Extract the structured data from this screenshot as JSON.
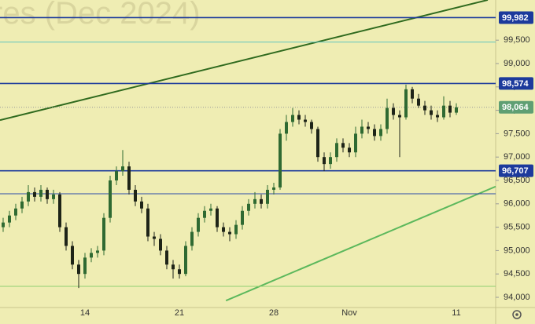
{
  "chart_data": {
    "type": "candlestick",
    "watermark": "res (Dec 2024)",
    "categories": [
      null,
      null,
      null,
      null,
      null,
      null,
      null,
      null,
      null,
      null,
      null,
      null,
      null,
      "14",
      null,
      null,
      null,
      null,
      null,
      null,
      null,
      null,
      null,
      null,
      null,
      null,
      null,
      null,
      "21",
      null,
      null,
      null,
      null,
      null,
      null,
      null,
      null,
      null,
      null,
      null,
      null,
      null,
      null,
      "28",
      null,
      null,
      null,
      null,
      null,
      null,
      null,
      null,
      null,
      null,
      null,
      "Nov",
      null,
      null,
      null,
      null,
      null,
      null,
      null,
      null,
      null,
      null,
      null,
      null,
      null,
      null,
      null,
      null,
      "11"
    ],
    "open": [
      95500,
      95600,
      95750,
      95900,
      96050,
      96250,
      96150,
      96300,
      96100,
      96200,
      95500,
      95100,
      94700,
      94500,
      94850,
      94950,
      95000,
      95700,
      96500,
      96700,
      96800,
      96300,
      96050,
      95900,
      95300,
      95250,
      95000,
      94700,
      94600,
      94500,
      95100,
      95400,
      95700,
      95850,
      95900,
      95500,
      95400,
      95350,
      95550,
      95850,
      96000,
      96100,
      96000,
      96300,
      96350,
      97500,
      97750,
      97900,
      97800,
      97750,
      97600,
      97000,
      96850,
      97000,
      97300,
      97200,
      97100,
      97500,
      97650,
      97600,
      97450,
      97600,
      98050,
      97900,
      97850,
      98450,
      98250,
      98100,
      98000,
      97900,
      97850,
      98100,
      97950
    ],
    "high": [
      95700,
      95850,
      96000,
      96150,
      96400,
      96350,
      96400,
      96350,
      96300,
      96250,
      95600,
      95200,
      94800,
      94950,
      95050,
      95100,
      95800,
      96600,
      96800,
      97150,
      96900,
      96400,
      96150,
      96000,
      95400,
      95350,
      95100,
      94800,
      94700,
      95200,
      95500,
      95800,
      95950,
      96000,
      95950,
      95600,
      95500,
      95650,
      95950,
      96100,
      96250,
      96200,
      96400,
      96450,
      97600,
      97900,
      98050,
      98000,
      97900,
      97800,
      97650,
      97100,
      97100,
      97400,
      97400,
      97300,
      97650,
      97800,
      97750,
      97700,
      97700,
      98250,
      98150,
      98000,
      98550,
      98500,
      98350,
      98200,
      98100,
      98000,
      98300,
      98200,
      98150
    ],
    "low": [
      95400,
      95500,
      95650,
      95800,
      95950,
      96050,
      96050,
      96000,
      96000,
      95400,
      95000,
      94600,
      94200,
      94400,
      94750,
      94850,
      94900,
      95600,
      96400,
      96600,
      96200,
      95950,
      95800,
      95200,
      95100,
      94900,
      94600,
      94400,
      94400,
      94450,
      95000,
      95300,
      95600,
      95750,
      95400,
      95300,
      95200,
      95250,
      95450,
      95750,
      95900,
      95900,
      95900,
      96200,
      96300,
      97350,
      97650,
      97700,
      97650,
      97500,
      96900,
      96700,
      96750,
      96900,
      97100,
      97000,
      97000,
      97400,
      97500,
      97350,
      97350,
      97500,
      97800,
      97000,
      97800,
      98150,
      98050,
      97900,
      97800,
      97750,
      97800,
      97850,
      97900
    ],
    "close": [
      95600,
      95750,
      95900,
      96050,
      96250,
      96150,
      96300,
      96100,
      96200,
      95500,
      95100,
      94700,
      94500,
      94850,
      94950,
      95000,
      95700,
      96500,
      96700,
      96800,
      96300,
      96050,
      95900,
      95300,
      95250,
      95000,
      94700,
      94600,
      94500,
      95100,
      95400,
      95700,
      95850,
      95900,
      95500,
      95400,
      95350,
      95550,
      95850,
      96000,
      96100,
      96000,
      96300,
      96350,
      97500,
      97750,
      97900,
      97800,
      97750,
      97600,
      97000,
      96850,
      97000,
      97300,
      97200,
      97100,
      97500,
      97650,
      97600,
      97450,
      97600,
      98050,
      97900,
      97850,
      98450,
      98250,
      98100,
      98000,
      97900,
      97850,
      98100,
      97950,
      98064
    ],
    "up_color": "#2f6a32",
    "down_color": "#1e2418",
    "ylim": [
      93782,
      100359
    ],
    "yticks": [
      {
        "value": 94000,
        "label": "94,000"
      },
      {
        "value": 94500,
        "label": "94,500"
      },
      {
        "value": 95000,
        "label": "95,000"
      },
      {
        "value": 95500,
        "label": "95,500"
      },
      {
        "value": 96000,
        "label": "96,000"
      },
      {
        "value": 96500,
        "label": "96,500"
      },
      {
        "value": 97000,
        "label": "97,000"
      },
      {
        "value": 97500,
        "label": "97,500"
      },
      {
        "value": 98000,
        "label": "98,000"
      },
      {
        "value": 98500,
        "label": "98,500"
      },
      {
        "value": 99000,
        "label": "99,000"
      },
      {
        "value": 99500,
        "label": "99,500"
      }
    ],
    "levels": [
      {
        "value": 99982,
        "label": "99,982",
        "color": "#1c3a9c"
      },
      {
        "value": 99460,
        "color": "#5fc4c0"
      },
      {
        "value": 98574,
        "label": "98,574",
        "color": "#1c3a9c"
      },
      {
        "value": 98064,
        "label": "98,064",
        "color": "#5f9f73",
        "dashed": true
      },
      {
        "value": 96707,
        "label": "96,707",
        "color": "#1c3a9c"
      },
      {
        "value": 96215,
        "color": "#2b4aa8"
      },
      {
        "value": 94235,
        "color": "#8fcf72"
      }
    ],
    "trendlines": [
      {
        "color": "#2f6a1e",
        "points": [
          [
            -0.5,
            97790
          ],
          [
            77,
            100360
          ]
        ]
      },
      {
        "color": "#5cb85c",
        "points": [
          [
            35.4,
            93930
          ],
          [
            78.25,
            96370
          ]
        ]
      }
    ]
  }
}
